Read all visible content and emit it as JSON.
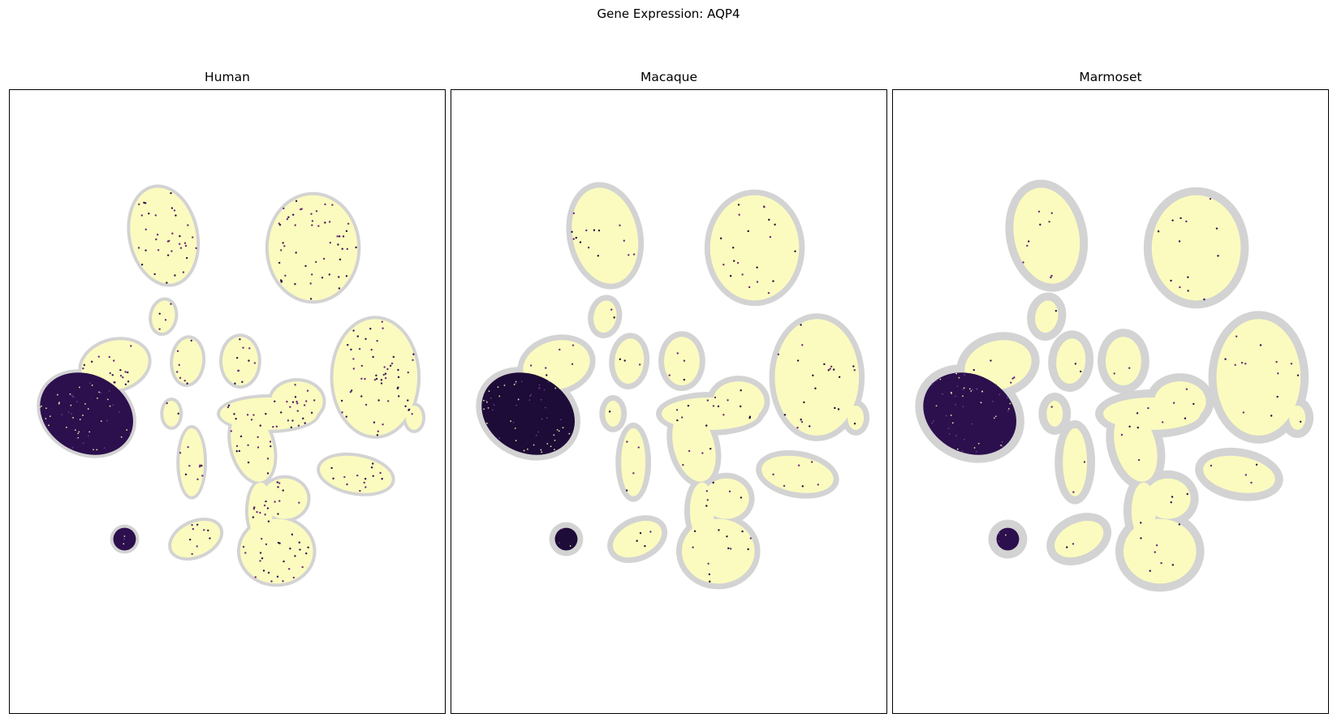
{
  "figure": {
    "title": "Gene Expression: AQP4"
  },
  "chart_data": [
    {
      "type": "scatter",
      "title": "Human",
      "gene": "AQP4",
      "xlabel": "",
      "ylabel": "",
      "axes_ticks": "none",
      "grid": false,
      "colormap": "magma_r",
      "background_color": "#d3d3d3",
      "low_color": "#fbfbbf",
      "high_color": "#2c0f4d",
      "high_expression_clusters": [
        "far-left large cluster",
        "lower-left small cluster"
      ],
      "sparse_expression_level": 0.12
    },
    {
      "type": "scatter",
      "title": "Macaque",
      "gene": "AQP4",
      "xlabel": "",
      "ylabel": "",
      "axes_ticks": "none",
      "grid": false,
      "colormap": "magma_r",
      "background_color": "#d3d3d3",
      "low_color": "#fbfbbf",
      "high_color": "#1d0b38",
      "high_expression_clusters": [
        "far-left large cluster",
        "lower-left small cluster"
      ],
      "sparse_expression_level": 0.05
    },
    {
      "type": "scatter",
      "title": "Marmoset",
      "gene": "AQP4",
      "xlabel": "",
      "ylabel": "",
      "axes_ticks": "none",
      "grid": false,
      "colormap": "magma_r",
      "background_color": "#d3d3d3",
      "low_color": "#fbfbbf",
      "high_color": "#2c0f4d",
      "high_expression_clusters": [
        "far-left large cluster",
        "lower-left small cluster"
      ],
      "sparse_expression_level": 0.03
    }
  ]
}
